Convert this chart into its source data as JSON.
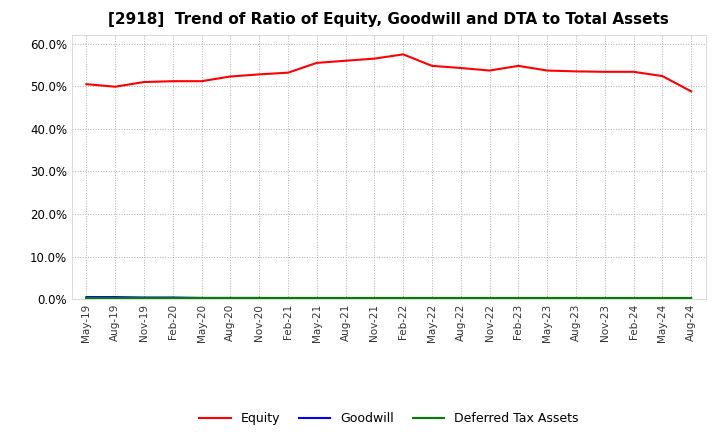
{
  "title": "[2918]  Trend of Ratio of Equity, Goodwill and DTA to Total Assets",
  "title_fontsize": 11,
  "ylim": [
    0.0,
    0.62
  ],
  "yticks": [
    0.0,
    0.1,
    0.2,
    0.3,
    0.4,
    0.5,
    0.6
  ],
  "x_labels": [
    "May-19",
    "Aug-19",
    "Nov-19",
    "Feb-20",
    "May-20",
    "Aug-20",
    "Nov-20",
    "Feb-21",
    "May-21",
    "Aug-21",
    "Nov-21",
    "Feb-22",
    "May-22",
    "Aug-22",
    "Nov-22",
    "Feb-23",
    "May-23",
    "Aug-23",
    "Nov-23",
    "Feb-24",
    "May-24",
    "Aug-24"
  ],
  "equity": [
    0.505,
    0.499,
    0.51,
    0.512,
    0.512,
    0.523,
    0.528,
    0.532,
    0.555,
    0.56,
    0.565,
    0.575,
    0.548,
    0.543,
    0.537,
    0.548,
    0.537,
    0.535,
    0.534,
    0.534,
    0.524,
    0.488
  ],
  "goodwill": [
    0.005,
    0.005,
    0.004,
    0.004,
    0.003,
    0.003,
    0.003,
    0.002,
    0.002,
    0.002,
    0.002,
    0.002,
    0.001,
    0.001,
    0.001,
    0.001,
    0.001,
    0.001,
    0.001,
    0.001,
    0.001,
    0.001
  ],
  "dta": [
    0.003,
    0.003,
    0.003,
    0.003,
    0.003,
    0.003,
    0.003,
    0.003,
    0.003,
    0.003,
    0.003,
    0.003,
    0.003,
    0.003,
    0.003,
    0.003,
    0.003,
    0.003,
    0.003,
    0.003,
    0.003,
    0.003
  ],
  "equity_color": "#ff0000",
  "goodwill_color": "#0000ff",
  "dta_color": "#008000",
  "bg_color": "#ffffff",
  "grid_color": "#999999",
  "linewidth": 1.5
}
